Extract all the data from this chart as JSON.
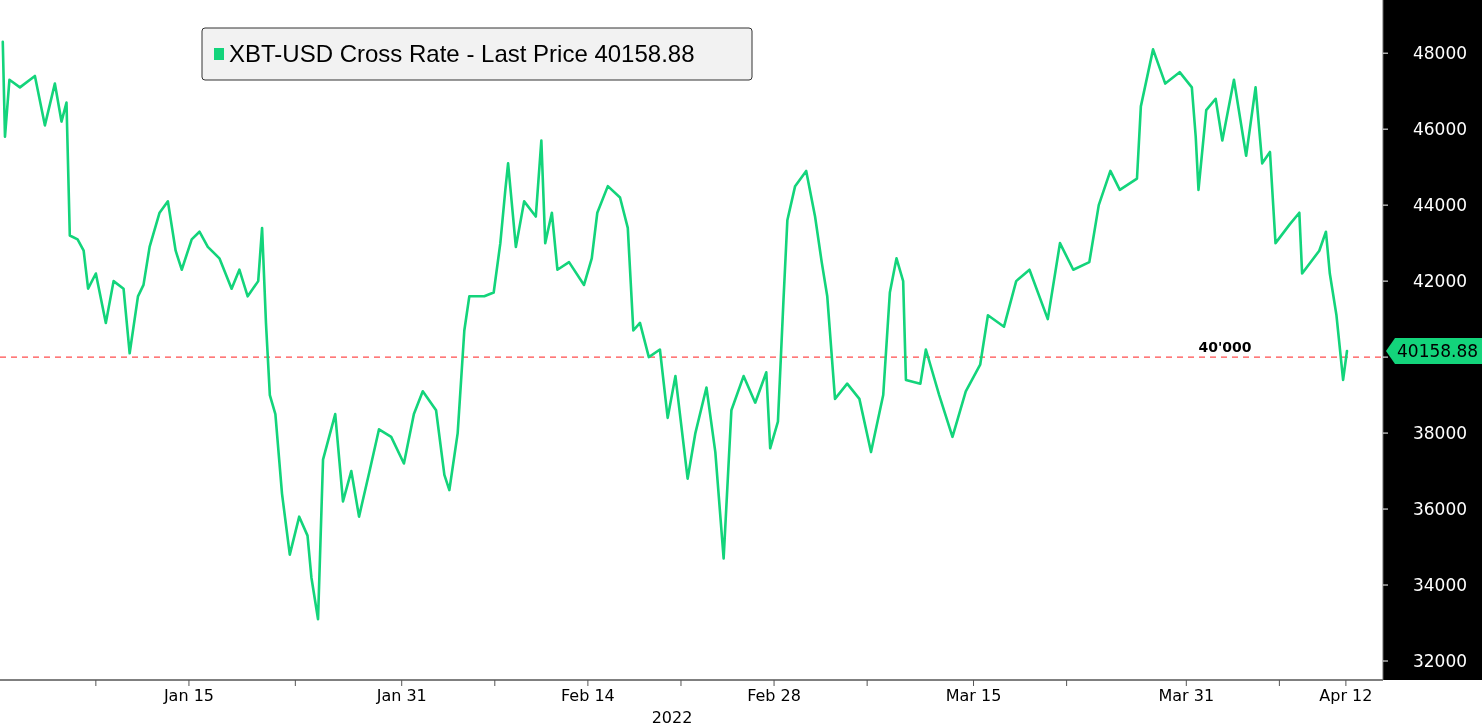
{
  "chart_data": {
    "type": "line",
    "xlabel": "2022",
    "xlim": [
      "2021-12-31T19:00",
      "2022-04-14T19:00"
    ],
    "xticks": [
      {
        "value": "2022-01-08",
        "label": null
      },
      {
        "value": "2022-01-15",
        "label": "Jan 15"
      },
      {
        "value": "2022-01-23",
        "label": null
      },
      {
        "value": "2022-01-31",
        "label": "Jan 31"
      },
      {
        "value": "2022-02-07",
        "label": null
      },
      {
        "value": "2022-02-14",
        "label": "Feb 14"
      },
      {
        "value": "2022-02-21",
        "label": null
      },
      {
        "value": "2022-02-28",
        "label": "Feb 28"
      },
      {
        "value": "2022-03-07",
        "label": null
      },
      {
        "value": "2022-03-15",
        "label": "Mar 15"
      },
      {
        "value": "2022-03-22",
        "label": null
      },
      {
        "value": "2022-03-31",
        "label": "Mar 31"
      },
      {
        "value": "2022-04-07",
        "label": null
      },
      {
        "value": "2022-04-12",
        "label": "Apr 12"
      }
    ],
    "ylim": [
      31500,
      49400
    ],
    "yticks": [
      32000,
      34000,
      36000,
      38000,
      {
        "value": 40000,
        "label": null
      },
      42000,
      44000,
      46000,
      48000
    ],
    "grid": false,
    "legend": "top left",
    "line_style": "solid",
    "marker": "none",
    "ref_lines": [
      {
        "axis": "y",
        "value": 40000,
        "label": "40'000",
        "color": "#ff4d4d",
        "line_style": "dashed"
      }
    ],
    "annotations": [
      {
        "text": "40158.88",
        "x": "2022-04-12T02:00",
        "y": 40158.88
      }
    ],
    "series": [
      {
        "name": "XBT-USD Cross Rate - Last Price 40158.88",
        "color": "#13d47b",
        "x": [
          "2022-01-01T00:00",
          "2022-01-01T04:00",
          "2022-01-01T12:00",
          "2022-01-02T07:00",
          "2022-01-03T10:00",
          "2022-01-04T04:00",
          "2022-01-04T22:00",
          "2022-01-05T10:00",
          "2022-01-05T19:00",
          "2022-01-06T01:00",
          "2022-01-06T15:00",
          "2022-01-07T02:00",
          "2022-01-07T10:00",
          "2022-01-08T00:00",
          "2022-01-08T18:00",
          "2022-01-09T08:00",
          "2022-01-10T02:00",
          "2022-01-10T13:00",
          "2022-01-11T04:00",
          "2022-01-11T14:00",
          "2022-01-12T01:00",
          "2022-01-12T19:00",
          "2022-01-13T10:00",
          "2022-01-14T00:00",
          "2022-01-14T11:00",
          "2022-01-15T05:00",
          "2022-01-15T19:00",
          "2022-01-16T10:00",
          "2022-01-17T07:00",
          "2022-01-18T05:00",
          "2022-01-18T19:00",
          "2022-01-19T10:00",
          "2022-01-20T05:00",
          "2022-01-20T12:00",
          "2022-01-20T19:00",
          "2022-01-21T02:00",
          "2022-01-21T12:00",
          "2022-01-22T00:00",
          "2022-01-22T14:00",
          "2022-01-23T07:00",
          "2022-01-23T22:00",
          "2022-01-24T05:00",
          "2022-01-24T17:00",
          "2022-01-25T02:00",
          "2022-01-26T00:00",
          "2022-01-26T14:00",
          "2022-01-27T05:00",
          "2022-01-27T19:00",
          "2022-01-28T14:00",
          "2022-01-29T07:00",
          "2022-01-30T05:00",
          "2022-01-31T04:00",
          "2022-01-31T22:00",
          "2022-02-01T14:00",
          "2022-02-02T14:00",
          "2022-02-03T05:00",
          "2022-02-03T14:00",
          "2022-02-04T05:00",
          "2022-02-04T17:00",
          "2022-02-05T02:00",
          "2022-02-06T05:00",
          "2022-02-06T22:00",
          "2022-02-07T10:00",
          "2022-02-07T19:00",
          "2022-02-08T00:00",
          "2022-02-08T14:00",
          "2022-02-09T05:00",
          "2022-02-10T02:00",
          "2022-02-10T12:00",
          "2022-02-10T19:00",
          "2022-02-11T07:00",
          "2022-02-11T17:00",
          "2022-02-12T14:00",
          "2022-02-13T17:00",
          "2022-02-14T07:00",
          "2022-02-14T17:00",
          "2022-02-15T12:00",
          "2022-02-16T10:00",
          "2022-02-17T00:00",
          "2022-02-17T10:00",
          "2022-02-17T22:00",
          "2022-02-18T14:00",
          "2022-02-19T10:00",
          "2022-02-20T00:00",
          "2022-02-20T14:00",
          "2022-02-21T12:00",
          "2022-02-22T02:00",
          "2022-02-22T22:00",
          "2022-02-23T14:00",
          "2022-02-24T05:00",
          "2022-02-24T19:00",
          "2022-02-25T17:00",
          "2022-02-26T14:00",
          "2022-02-27T10:00",
          "2022-02-27T17:00",
          "2022-02-28T07:00",
          "2022-02-28T17:00",
          "2022-03-01T00:00",
          "2022-03-01T14:00",
          "2022-03-02T10:00",
          "2022-03-03T02:00",
          "2022-03-03T14:00",
          "2022-03-04T00:00",
          "2022-03-04T14:00",
          "2022-03-05T12:00",
          "2022-03-06T10:00",
          "2022-03-07T07:00",
          "2022-03-08T05:00",
          "2022-03-08T17:00",
          "2022-03-09T05:00",
          "2022-03-09T17:00",
          "2022-03-09T22:00",
          "2022-03-11T00:00",
          "2022-03-11T10:00",
          "2022-03-12T10:00",
          "2022-03-13T10:00",
          "2022-03-14T10:00",
          "2022-03-15T12:00",
          "2022-03-16T02:00",
          "2022-03-17T07:00",
          "2022-03-18T05:00",
          "2022-03-19T05:00",
          "2022-03-20T14:00",
          "2022-03-21T12:00",
          "2022-03-22T12:00",
          "2022-03-23T17:00",
          "2022-03-24T10:00",
          "2022-03-25T07:00",
          "2022-03-26T00:00",
          "2022-03-27T07:00",
          "2022-03-27T14:00",
          "2022-03-28T12:00",
          "2022-03-29T10:00",
          "2022-03-30T12:00",
          "2022-03-31T10:00",
          "2022-03-31T17:00",
          "2022-03-31T22:00",
          "2022-04-01T12:00",
          "2022-04-02T05:00",
          "2022-04-02T17:00",
          "2022-04-03T14:00",
          "2022-04-04T12:00",
          "2022-04-05T05:00",
          "2022-04-05T17:00",
          "2022-04-06T07:00",
          "2022-04-06T17:00",
          "2022-04-07T19:00",
          "2022-04-08T12:00",
          "2022-04-08T17:00",
          "2022-04-10T00:00",
          "2022-04-10T12:00",
          "2022-04-10T19:00",
          "2022-04-11T07:00",
          "2022-04-11T19:00",
          "2022-04-12T02:00"
        ],
        "values": [
          48300,
          45800,
          47300,
          47100,
          47400,
          46100,
          47200,
          46200,
          46700,
          43200,
          43100,
          42800,
          41800,
          42200,
          40900,
          42000,
          41800,
          40100,
          41600,
          41900,
          42900,
          43800,
          44100,
          42800,
          42300,
          43100,
          43300,
          42900,
          42600,
          41800,
          42300,
          41600,
          42000,
          43400,
          40900,
          39000,
          38500,
          36400,
          34800,
          35800,
          35300,
          34200,
          33100,
          37300,
          38500,
          36200,
          37000,
          35800,
          37000,
          38100,
          37900,
          37200,
          38500,
          39100,
          38600,
          36900,
          36500,
          38000,
          40700,
          41600,
          41600,
          41700,
          43000,
          44400,
          45100,
          42900,
          44100,
          43700,
          45700,
          43000,
          43800,
          42300,
          42500,
          41900,
          42600,
          43800,
          44500,
          44200,
          43400,
          40700,
          40900,
          40000,
          40200,
          38400,
          39500,
          36800,
          38000,
          39200,
          37500,
          34700,
          38600,
          39500,
          38800,
          39600,
          37600,
          38300,
          41500,
          43600,
          44500,
          44900,
          43700,
          42500,
          41600,
          38900,
          39300,
          38900,
          37500,
          39000,
          41700,
          42600,
          42000,
          39400,
          39300,
          40200,
          39000,
          37900,
          39100,
          39800,
          41100,
          40800,
          42000,
          42300,
          41000,
          43000,
          42300,
          42500,
          44000,
          44900,
          44400,
          44700,
          46600,
          48100,
          47200,
          47500,
          47100,
          45800,
          44400,
          46500,
          46800,
          45700,
          47300,
          45300,
          47100,
          45100,
          45400,
          43000,
          43500,
          43800,
          42200,
          42800,
          43300,
          42200,
          41100,
          39400,
          40160
        ]
      }
    ]
  }
}
